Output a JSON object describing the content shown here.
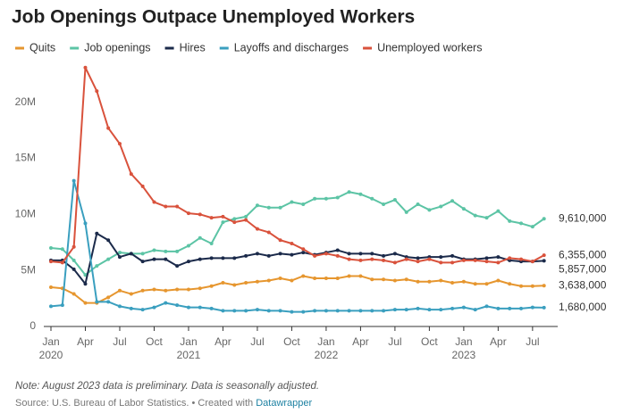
{
  "chart_data": {
    "type": "line",
    "title": "Job Openings Outpace Unemployed Workers",
    "note": "Note: August 2023 data is preliminary. Data is seasonally adjusted.",
    "source": "Source: U.S. Bureau of Labor Statistics. • Created with",
    "credit": "Datawrapper",
    "x": [
      "2020-01",
      "2020-02",
      "2020-03",
      "2020-04",
      "2020-05",
      "2020-06",
      "2020-07",
      "2020-08",
      "2020-09",
      "2020-10",
      "2020-11",
      "2020-12",
      "2021-01",
      "2021-02",
      "2021-03",
      "2021-04",
      "2021-05",
      "2021-06",
      "2021-07",
      "2021-08",
      "2021-09",
      "2021-10",
      "2021-11",
      "2021-12",
      "2022-01",
      "2022-02",
      "2022-03",
      "2022-04",
      "2022-05",
      "2022-06",
      "2022-07",
      "2022-08",
      "2022-09",
      "2022-10",
      "2022-11",
      "2022-12",
      "2023-01",
      "2023-02",
      "2023-03",
      "2023-04",
      "2023-05",
      "2023-06",
      "2023-07",
      "2023-08"
    ],
    "xticks": [
      {
        "value": "2020-01",
        "label": "Jan 2020"
      },
      {
        "value": "2020-04",
        "label": "Apr"
      },
      {
        "value": "2020-07",
        "label": "Jul"
      },
      {
        "value": "2020-10",
        "label": "Oct"
      },
      {
        "value": "2021-01",
        "label": "Jan 2021"
      },
      {
        "value": "2021-04",
        "label": "Apr"
      },
      {
        "value": "2021-07",
        "label": "Jul"
      },
      {
        "value": "2021-10",
        "label": "Oct"
      },
      {
        "value": "2022-01",
        "label": "Jan 2022"
      },
      {
        "value": "2022-04",
        "label": "Apr"
      },
      {
        "value": "2022-07",
        "label": "Jul"
      },
      {
        "value": "2022-10",
        "label": "Oct"
      },
      {
        "value": "2023-01",
        "label": "Jan 2023"
      },
      {
        "value": "2023-04",
        "label": "Apr"
      },
      {
        "value": "2023-07",
        "label": "Jul"
      }
    ],
    "ylim": [
      0,
      23000000
    ],
    "yticks": [
      0,
      {
        "value": 5000000,
        "label": "5M"
      },
      {
        "value": 10000000,
        "label": "10M"
      },
      {
        "value": 15000000,
        "label": "15M"
      },
      {
        "value": 20000000,
        "label": "20M"
      }
    ],
    "grid": false,
    "series": [
      {
        "name": "Quits",
        "color": "#e6962f",
        "values": [
          3500000,
          3400000,
          2900000,
          2100000,
          2100000,
          2600000,
          3200000,
          2900000,
          3200000,
          3300000,
          3200000,
          3300000,
          3300000,
          3400000,
          3600000,
          3900000,
          3700000,
          3900000,
          4000000,
          4100000,
          4300000,
          4100000,
          4500000,
          4300000,
          4300000,
          4300000,
          4500000,
          4500000,
          4200000,
          4200000,
          4100000,
          4200000,
          4000000,
          4000000,
          4100000,
          3900000,
          4000000,
          3800000,
          3800000,
          4100000,
          3800000,
          3600000,
          3600000,
          3638000
        ],
        "value_labels": [
          null,
          null,
          null,
          null,
          null,
          null,
          null,
          null,
          null,
          null,
          null,
          null,
          null,
          null,
          null,
          null,
          null,
          null,
          null,
          null,
          null,
          null,
          null,
          null,
          null,
          null,
          null,
          null,
          null,
          null,
          null,
          null,
          null,
          null,
          null,
          null,
          null,
          null,
          null,
          null,
          null,
          null,
          null,
          "3,638,000"
        ]
      },
      {
        "name": "Job openings",
        "color": "#5cc4a5",
        "values": [
          7000000,
          6900000,
          5900000,
          4600000,
          5400000,
          6000000,
          6600000,
          6500000,
          6500000,
          6800000,
          6700000,
          6700000,
          7200000,
          7900000,
          7400000,
          9300000,
          9600000,
          9800000,
          10800000,
          10600000,
          10600000,
          11100000,
          10900000,
          11400000,
          11400000,
          11500000,
          12000000,
          11800000,
          11400000,
          10900000,
          11300000,
          10200000,
          10900000,
          10400000,
          10700000,
          11200000,
          10500000,
          9900000,
          9700000,
          10300000,
          9400000,
          9200000,
          8900000,
          9610000
        ],
        "value_labels": [
          null,
          null,
          null,
          null,
          null,
          null,
          null,
          null,
          null,
          null,
          null,
          null,
          null,
          null,
          null,
          null,
          null,
          null,
          null,
          null,
          null,
          null,
          null,
          null,
          null,
          null,
          null,
          null,
          null,
          null,
          null,
          null,
          null,
          null,
          null,
          null,
          null,
          null,
          null,
          null,
          null,
          null,
          null,
          "9,610,000"
        ]
      },
      {
        "name": "Hires",
        "color": "#1b2a4a",
        "values": [
          5900000,
          5900000,
          5100000,
          3800000,
          8300000,
          7700000,
          6200000,
          6500000,
          5800000,
          6000000,
          6000000,
          5400000,
          5800000,
          6000000,
          6100000,
          6100000,
          6100000,
          6300000,
          6500000,
          6300000,
          6500000,
          6400000,
          6600000,
          6400000,
          6600000,
          6800000,
          6500000,
          6500000,
          6500000,
          6300000,
          6500000,
          6200000,
          6100000,
          6200000,
          6200000,
          6300000,
          6000000,
          6000000,
          6100000,
          6200000,
          5900000,
          5800000,
          5800000,
          5857000
        ],
        "value_labels": [
          null,
          null,
          null,
          null,
          null,
          null,
          null,
          null,
          null,
          null,
          null,
          null,
          null,
          null,
          null,
          null,
          null,
          null,
          null,
          null,
          null,
          null,
          null,
          null,
          null,
          null,
          null,
          null,
          null,
          null,
          null,
          null,
          null,
          null,
          null,
          null,
          null,
          null,
          null,
          null,
          null,
          null,
          null,
          "5,857,000"
        ]
      },
      {
        "name": "Layoffs and discharges",
        "color": "#3a9fbf",
        "values": [
          1800000,
          1900000,
          13000000,
          9200000,
          2200000,
          2200000,
          1800000,
          1600000,
          1500000,
          1700000,
          2100000,
          1900000,
          1700000,
          1700000,
          1600000,
          1400000,
          1400000,
          1400000,
          1500000,
          1400000,
          1400000,
          1300000,
          1300000,
          1400000,
          1400000,
          1400000,
          1400000,
          1400000,
          1400000,
          1400000,
          1500000,
          1500000,
          1600000,
          1500000,
          1500000,
          1600000,
          1700000,
          1500000,
          1800000,
          1600000,
          1600000,
          1600000,
          1700000,
          1680000
        ],
        "value_labels": [
          null,
          null,
          null,
          null,
          null,
          null,
          null,
          null,
          null,
          null,
          null,
          null,
          null,
          null,
          null,
          null,
          null,
          null,
          null,
          null,
          null,
          null,
          null,
          null,
          null,
          null,
          null,
          null,
          null,
          null,
          null,
          null,
          null,
          null,
          null,
          null,
          null,
          null,
          null,
          null,
          null,
          null,
          null,
          "1,680,000"
        ]
      },
      {
        "name": "Unemployed workers",
        "color": "#d9523c",
        "values": [
          5800000,
          5700000,
          7100000,
          23100000,
          21000000,
          17700000,
          16300000,
          13600000,
          12500000,
          11100000,
          10700000,
          10700000,
          10100000,
          10000000,
          9700000,
          9800000,
          9300000,
          9500000,
          8700000,
          8400000,
          7700000,
          7400000,
          6900000,
          6300000,
          6500000,
          6300000,
          6000000,
          5900000,
          6000000,
          5900000,
          5700000,
          6000000,
          5800000,
          6000000,
          5700000,
          5700000,
          5900000,
          5900000,
          5800000,
          5700000,
          6100000,
          6000000,
          5800000,
          6355000
        ],
        "value_labels": [
          null,
          null,
          null,
          null,
          null,
          null,
          null,
          null,
          null,
          null,
          null,
          null,
          null,
          null,
          null,
          null,
          null,
          null,
          null,
          null,
          null,
          null,
          null,
          null,
          null,
          null,
          null,
          null,
          null,
          null,
          null,
          null,
          null,
          null,
          null,
          null,
          null,
          null,
          null,
          null,
          null,
          null,
          null,
          "6,355,000"
        ]
      }
    ]
  }
}
